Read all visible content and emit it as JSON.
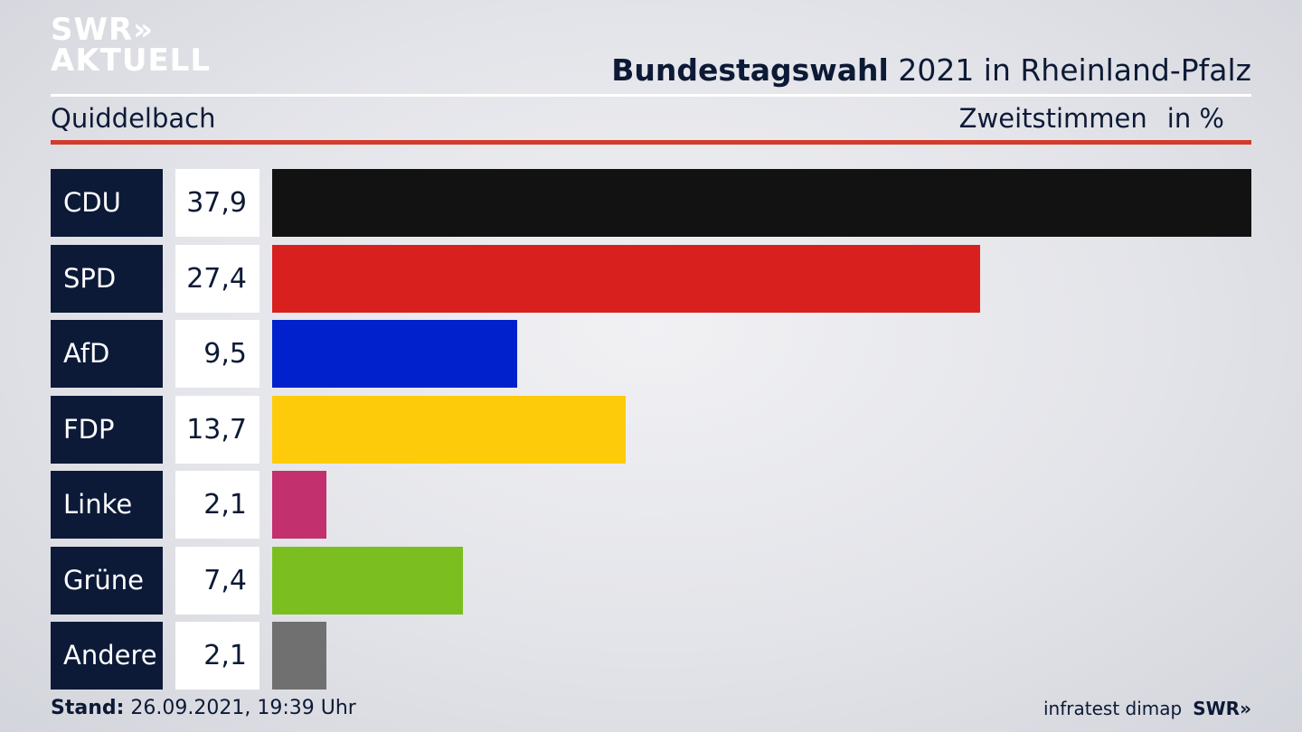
{
  "logo": {
    "line1": "SWR»",
    "line2": "AKTUELL"
  },
  "header": {
    "title_bold": "Bundestagswahl",
    "title_rest": " 2021 in Rheinland-Pfalz",
    "location": "Quiddelbach",
    "measure": "Zweitstimmen",
    "unit": "in %"
  },
  "chart_data": {
    "type": "bar",
    "orientation": "horizontal",
    "title": "Bundestagswahl 2021 in Rheinland-Pfalz",
    "subtitle": "Quiddelbach",
    "ylabel": "Zweitstimmen in %",
    "categories": [
      "CDU",
      "SPD",
      "AfD",
      "FDP",
      "Linke",
      "Grüne",
      "Andere"
    ],
    "values": [
      37.9,
      27.4,
      9.5,
      13.7,
      2.1,
      7.4,
      2.1
    ],
    "value_labels": [
      "37,9",
      "27,4",
      "9,5",
      "13,7",
      "2,1",
      "7,4",
      "2,1"
    ],
    "colors": [
      "#121212",
      "#d8211f",
      "#0021cb",
      "#fdcb0a",
      "#c2306e",
      "#7abf1f",
      "#707070"
    ],
    "xlim": [
      0,
      37.9
    ],
    "grid": false
  },
  "footer": {
    "stand_label": "Stand:",
    "stand_value": " 26.09.2021, 19:39 Uhr",
    "source": "infratest dimap",
    "brand": "SWR»"
  }
}
